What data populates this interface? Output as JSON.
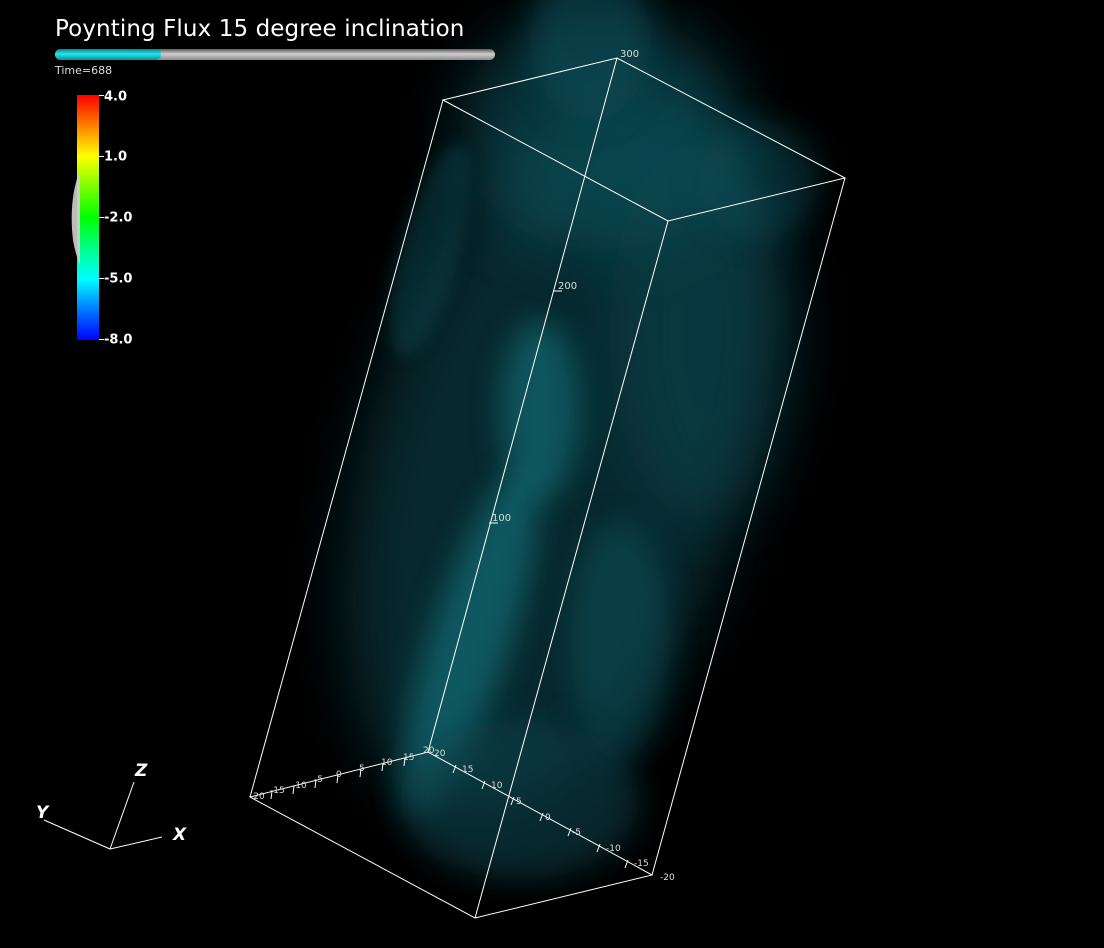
{
  "title": "Poynting Flux 15 degree inclination",
  "time_label": "Time=688",
  "progress": 0.24,
  "colorbar": {
    "labels": [
      "4.0",
      "1.0",
      "-2.0",
      "-5.0",
      "-8.0"
    ]
  },
  "box_axes": {
    "z_labels": [
      "300",
      "200",
      "100"
    ],
    "x_labels": [
      "20",
      "15",
      "10",
      "5",
      "0",
      "-5",
      "-10",
      "-15",
      "-20"
    ],
    "y_labels": [
      "-20",
      "-15",
      "-10",
      "-5",
      "0",
      "5",
      "10",
      "15",
      "20"
    ]
  },
  "triad": {
    "x": "X",
    "y": "Y",
    "z": "Z"
  },
  "colors": {
    "plume": "#0e6f78",
    "box_lines": "#ffffff",
    "progress_fill": "#26e6ee"
  }
}
